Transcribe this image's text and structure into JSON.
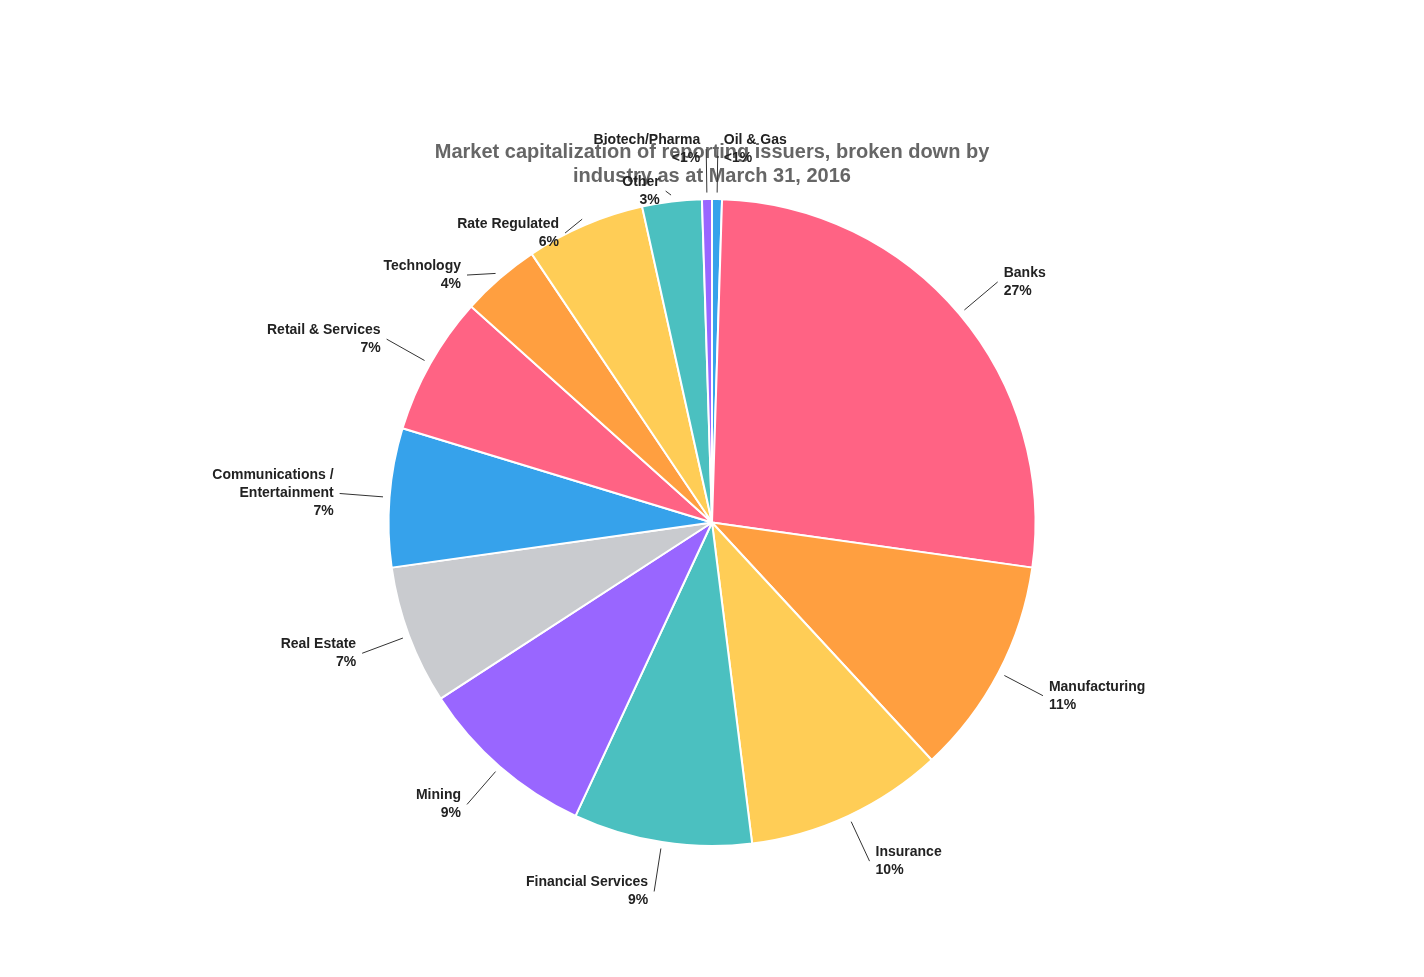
{
  "chart_data": {
    "type": "pie",
    "title": "Market capitalization of reporting issuers, broken down by\nindustry as at March 31, 2016",
    "categories": [
      "Oil & Gas",
      "Banks",
      "Manufacturing",
      "Insurance",
      "Financial Services",
      "Mining",
      "Real Estate",
      "Communications /\nEntertainment",
      "Retail & Services",
      "Technology",
      "Rate Regulated",
      "Other",
      "Biotech/Pharma"
    ],
    "values": [
      0.5,
      27,
      11,
      10,
      9,
      9,
      7,
      7,
      7,
      4,
      6,
      3,
      0.5
    ],
    "value_labels": [
      "<1%",
      "27%",
      "11%",
      "10%",
      "9%",
      "9%",
      "7%",
      "7%",
      "7%",
      "4%",
      "6%",
      "3%",
      "<1%"
    ],
    "data_labels": true
  }
}
